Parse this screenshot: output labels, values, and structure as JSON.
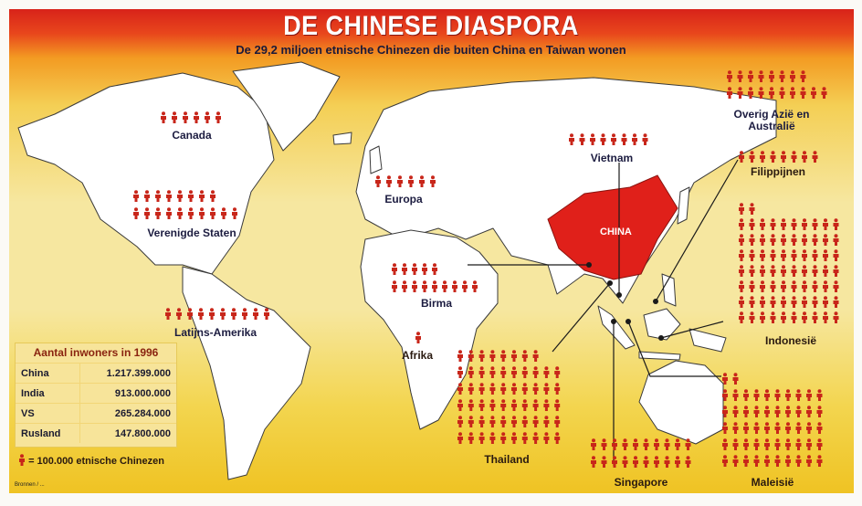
{
  "header": {
    "title": "DE CHINESE DIASPORA",
    "subtitle": "De 29,2 miljoen etnische Chinezen die buiten China en Taiwan wonen"
  },
  "map": {
    "highlight_country": "CHINA",
    "highlight_color": "#e0201a",
    "figure_color": "#c8261a",
    "land_color": "#ffffff"
  },
  "regions": [
    {
      "label": "Canada",
      "figures": 6
    },
    {
      "label": "Verenigde Staten",
      "figures": 18
    },
    {
      "label": "Latijns-Amerika",
      "figures": 10
    },
    {
      "label": "Europa",
      "figures": 6
    },
    {
      "label": "Afrika",
      "figures": 1
    },
    {
      "label": "Birma",
      "figures": 14
    },
    {
      "label": "Vietnam",
      "figures": 8
    },
    {
      "label": "Thailand",
      "figures": 58
    },
    {
      "label": "Singapore",
      "figures": 20
    },
    {
      "label": "Maleisië",
      "figures": 52
    },
    {
      "label": "Indonesië",
      "figures": 72
    },
    {
      "label": "Overig Azië en Australië",
      "figures": 18
    },
    {
      "label": "Filippijnen",
      "figures": 8
    }
  ],
  "population_table": {
    "title": "Aantal inwoners in 1996",
    "rows": [
      {
        "country": "China",
        "value": "1.217.399.000"
      },
      {
        "country": "India",
        "value": "913.000.000"
      },
      {
        "country": "VS",
        "value": "265.284.000"
      },
      {
        "country": "Rusland",
        "value": "147.800.000"
      }
    ]
  },
  "legend": {
    "icon": "person-icon",
    "text": "= 100.000 etnische Chinezen"
  },
  "credit": "Bronnen / ..."
}
